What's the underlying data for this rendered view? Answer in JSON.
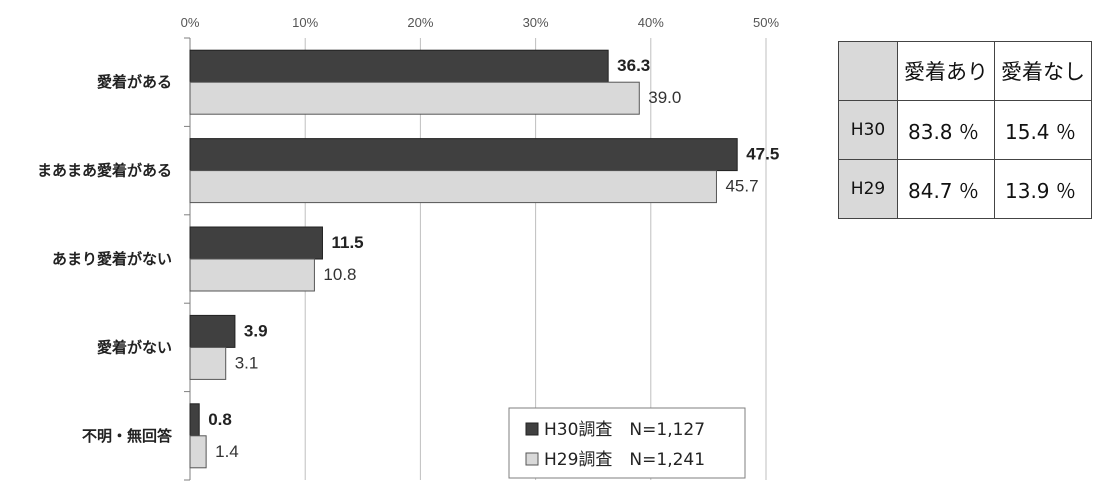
{
  "chart_data": {
    "type": "bar",
    "orientation": "horizontal",
    "categories": [
      "愛着がある",
      "まあまあ愛着がある",
      "あまり愛着がない",
      "愛着がない",
      "不明・無回答"
    ],
    "series": [
      {
        "name": "H30調査　N=1,127",
        "values": [
          36.3,
          47.5,
          11.5,
          3.9,
          0.8
        ],
        "color": "#404040"
      },
      {
        "name": "H29調査　N=1,241",
        "values": [
          39.0,
          45.7,
          10.8,
          3.1,
          1.4
        ],
        "color": "#d9d9d9"
      }
    ],
    "value_labels": [
      [
        "36.3",
        "47.5",
        "11.5",
        "3.9",
        "0.8"
      ],
      [
        "39.0",
        "45.7",
        "10.8",
        "3.1",
        "1.4"
      ]
    ],
    "x_ticks": [
      0,
      10,
      20,
      30,
      40,
      50
    ],
    "x_tick_labels": [
      "0%",
      "10%",
      "20%",
      "30%",
      "40%",
      "50%"
    ],
    "xlim": [
      0,
      50
    ],
    "grid": true,
    "legend_position": "bottom-right"
  },
  "summary_table": {
    "headers": [
      "",
      "愛着あり",
      "愛着なし"
    ],
    "rows": [
      {
        "label": "H30",
        "values": [
          "83.8 ％",
          "15.4 ％"
        ]
      },
      {
        "label": "H29",
        "values": [
          "84.7 ％",
          "13.9 ％"
        ]
      }
    ]
  }
}
